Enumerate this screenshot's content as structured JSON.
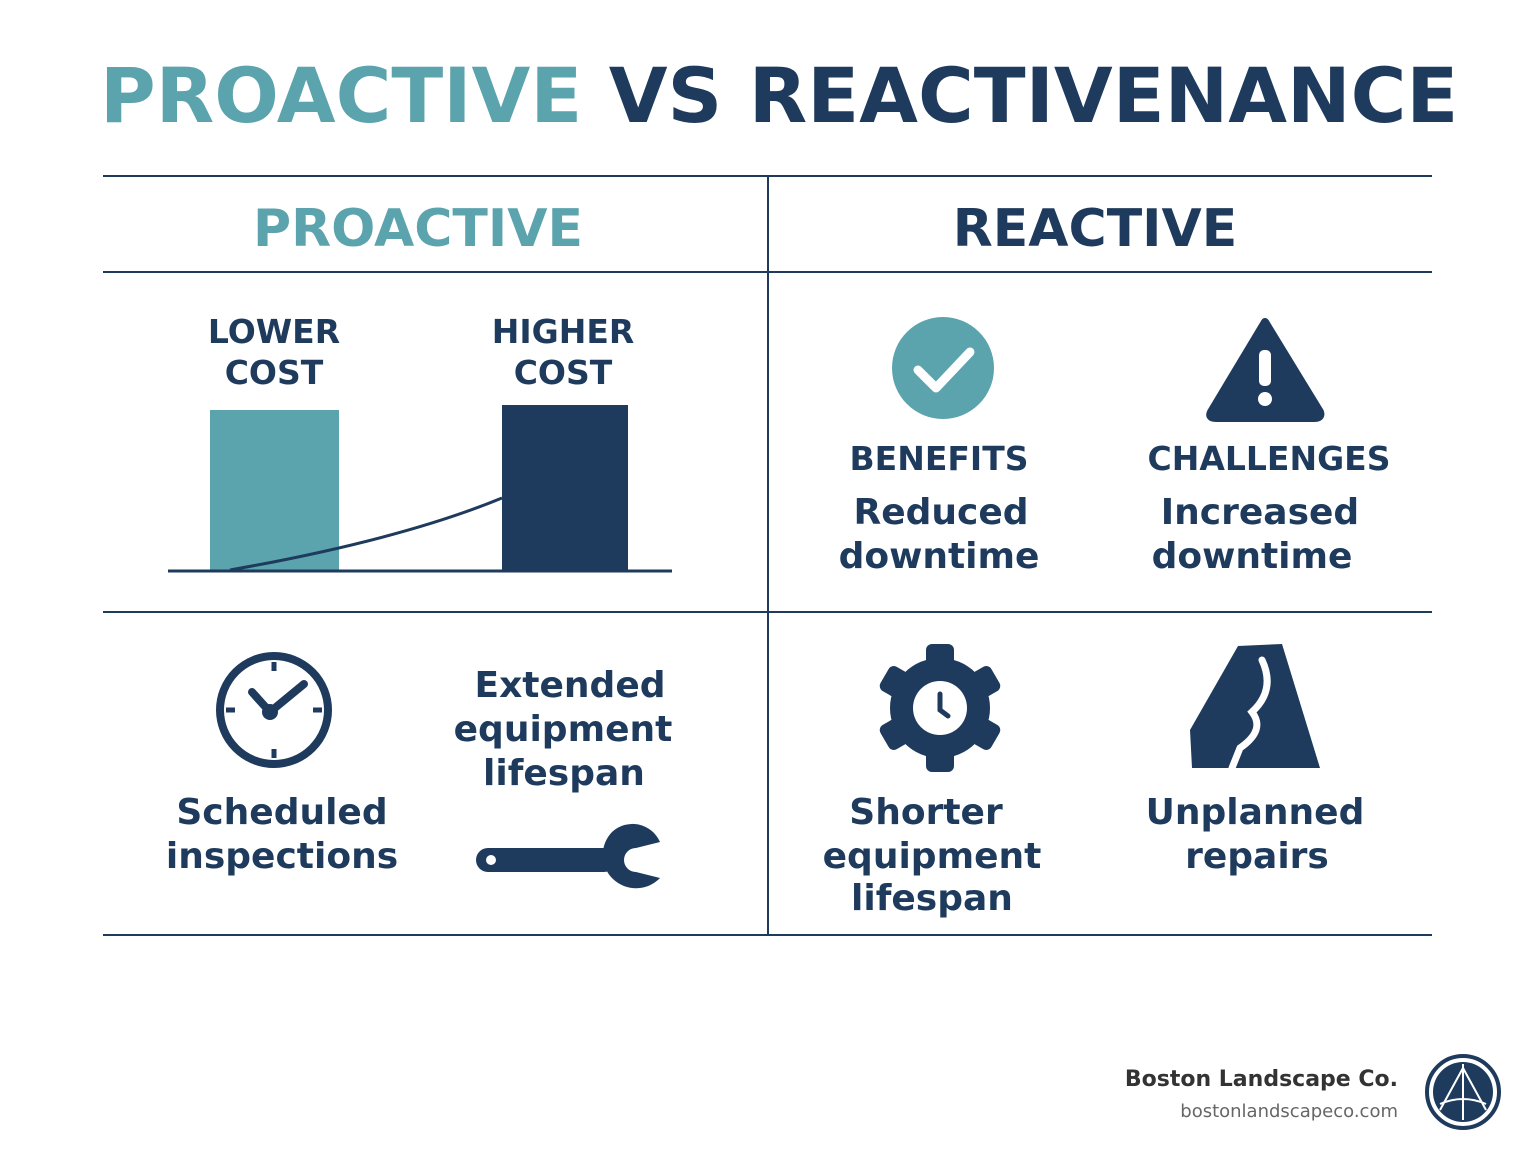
{
  "header": {
    "title_parts": [
      "PROACTIVE",
      " VS REACTIVENANCE"
    ]
  },
  "columns": [
    {
      "heading": "PROACTIVE"
    },
    {
      "heading": "REACTIVE"
    }
  ],
  "cost_chart": {
    "labels": [
      [
        "LOWER",
        "COST"
      ],
      [
        "HIGHER",
        "COST"
      ]
    ]
  },
  "reactive_top": [
    {
      "label": "BENEFITS",
      "text": [
        "Reduced",
        "downtime"
      ]
    },
    {
      "label": "CHALLENGES",
      "text": [
        "Increased",
        "downtime"
      ]
    }
  ],
  "proactive_bottom": [
    [
      "Scheduled",
      "inspections"
    ],
    [
      "Extended",
      "equipment",
      "lifespan"
    ]
  ],
  "reactive_bottom": [
    [
      "Shorter",
      "equipment",
      "lifespan"
    ],
    [
      "Unplanned",
      "repairs"
    ]
  ],
  "footer": {
    "company": "Boston Landscape Co.",
    "url": "bostonlandscapeco.com"
  }
}
